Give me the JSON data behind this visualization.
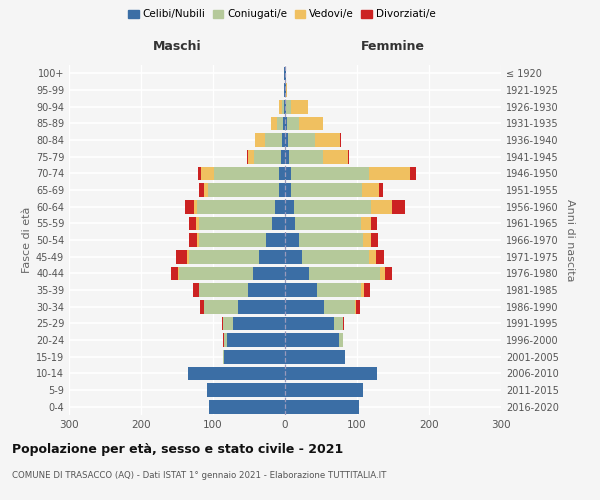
{
  "age_groups": [
    "0-4",
    "5-9",
    "10-14",
    "15-19",
    "20-24",
    "25-29",
    "30-34",
    "35-39",
    "40-44",
    "45-49",
    "50-54",
    "55-59",
    "60-64",
    "65-69",
    "70-74",
    "75-79",
    "80-84",
    "85-89",
    "90-94",
    "95-99",
    "100+"
  ],
  "birth_years": [
    "2016-2020",
    "2011-2015",
    "2006-2010",
    "2001-2005",
    "1996-2000",
    "1991-1995",
    "1986-1990",
    "1981-1985",
    "1976-1980",
    "1971-1975",
    "1966-1970",
    "1961-1965",
    "1956-1960",
    "1951-1955",
    "1946-1950",
    "1941-1945",
    "1936-1940",
    "1931-1935",
    "1926-1930",
    "1921-1925",
    "≤ 1920"
  ],
  "males": {
    "celibe": [
      105,
      108,
      135,
      85,
      80,
      72,
      65,
      52,
      45,
      36,
      26,
      18,
      14,
      9,
      8,
      5,
      4,
      3,
      2,
      1,
      1
    ],
    "coniugato": [
      0,
      0,
      0,
      1,
      5,
      14,
      48,
      68,
      102,
      98,
      93,
      102,
      108,
      98,
      90,
      38,
      24,
      8,
      2,
      0,
      0
    ],
    "vedovo": [
      0,
      0,
      0,
      0,
      0,
      0,
      0,
      0,
      1,
      2,
      3,
      3,
      5,
      5,
      18,
      8,
      14,
      8,
      5,
      0,
      0
    ],
    "divorziato": [
      0,
      0,
      0,
      0,
      1,
      2,
      5,
      8,
      10,
      15,
      12,
      10,
      12,
      8,
      5,
      2,
      0,
      0,
      0,
      0,
      0
    ]
  },
  "females": {
    "nubile": [
      103,
      108,
      128,
      83,
      75,
      68,
      54,
      44,
      34,
      24,
      20,
      14,
      12,
      9,
      8,
      5,
      4,
      3,
      2,
      1,
      1
    ],
    "coniugata": [
      0,
      0,
      0,
      1,
      5,
      12,
      43,
      62,
      98,
      93,
      88,
      92,
      108,
      98,
      108,
      48,
      38,
      16,
      6,
      0,
      0
    ],
    "vedova": [
      0,
      0,
      0,
      0,
      0,
      0,
      2,
      4,
      7,
      9,
      11,
      14,
      28,
      24,
      58,
      34,
      34,
      34,
      24,
      2,
      0
    ],
    "divorziata": [
      0,
      0,
      0,
      0,
      1,
      2,
      5,
      8,
      10,
      12,
      10,
      8,
      18,
      5,
      8,
      2,
      2,
      0,
      0,
      0,
      0
    ]
  },
  "colors": {
    "celibe": "#3b6ea5",
    "coniugato": "#b5c99a",
    "vedovo": "#f0c060",
    "divorziato": "#cc2222"
  },
  "xlim": 300,
  "title": "Popolazione per età, sesso e stato civile - 2021",
  "subtitle": "COMUNE DI TRASACCO (AQ) - Dati ISTAT 1° gennaio 2021 - Elaborazione TUTTITALIA.IT",
  "ylabel_left": "Fasce di età",
  "ylabel_right": "Anni di nascita",
  "xlabel_left": "Maschi",
  "xlabel_right": "Femmine",
  "legend_labels": [
    "Celibi/Nubili",
    "Coniugati/e",
    "Vedovi/e",
    "Divorziati/e"
  ],
  "bg_color": "#f5f5f5"
}
